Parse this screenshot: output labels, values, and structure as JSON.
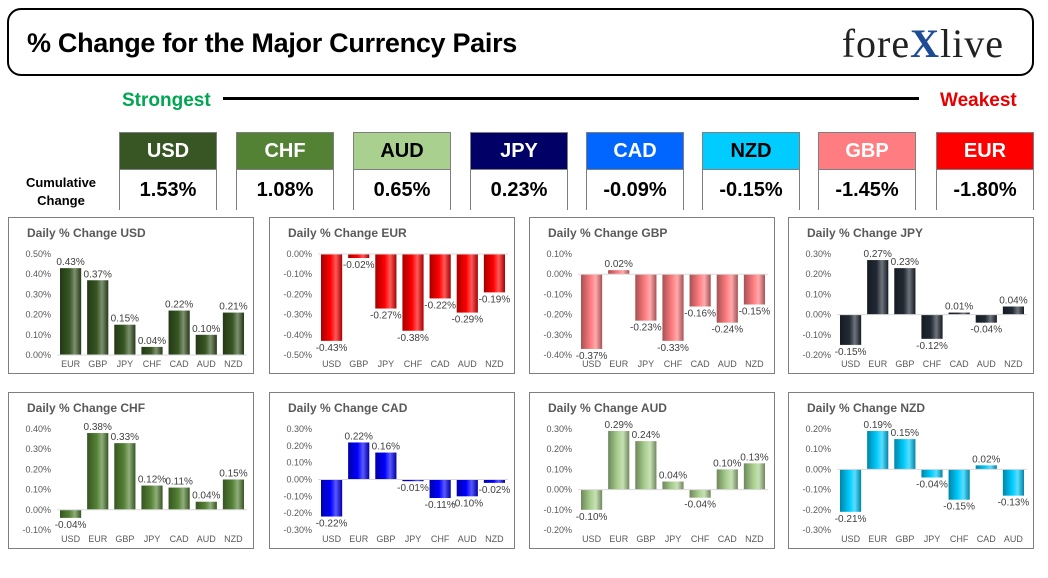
{
  "header": {
    "title": "% Change for the Major Currency Pairs",
    "logo_left": "fore",
    "logo_x": "X",
    "logo_right": "live"
  },
  "scale": {
    "strongest": "Strongest",
    "weakest": "Weakest"
  },
  "cumulative_label_1": "Cumulative",
  "cumulative_label_2": "Change",
  "currencies": [
    {
      "code": "USD",
      "value": "1.53%",
      "color": "#375623",
      "text": "#ffffff"
    },
    {
      "code": "CHF",
      "value": "1.08%",
      "color": "#548235",
      "text": "#ffffff"
    },
    {
      "code": "AUD",
      "value": "0.65%",
      "color": "#a9d08e",
      "text": "#000000"
    },
    {
      "code": "JPY",
      "value": "0.23%",
      "color": "#000066",
      "text": "#ffffff"
    },
    {
      "code": "CAD",
      "value": "-0.09%",
      "color": "#0066ff",
      "text": "#ffffff"
    },
    {
      "code": "NZD",
      "value": "-0.15%",
      "color": "#00ccff",
      "text": "#000000"
    },
    {
      "code": "GBP",
      "value": "-1.45%",
      "color": "#ff7c80",
      "text": "#ffffff"
    },
    {
      "code": "EUR",
      "value": "-1.80%",
      "color": "#ff0000",
      "text": "#ffffff"
    }
  ],
  "chart_data": [
    {
      "type": "bar",
      "title": "Daily % Change USD",
      "categories": [
        "EUR",
        "GBP",
        "JPY",
        "CHF",
        "CAD",
        "AUD",
        "NZD"
      ],
      "values": [
        0.43,
        0.37,
        0.15,
        0.04,
        0.22,
        0.1,
        0.21
      ],
      "labels": [
        "0.43%",
        "0.37%",
        "0.15%",
        "0.04%",
        "0.22%",
        "0.10%",
        "0.21%"
      ],
      "ylim": [
        0,
        0.5
      ],
      "ticks": [
        0,
        0.1,
        0.2,
        0.3,
        0.4,
        0.5
      ],
      "tick_labels": [
        "0.00%",
        "0.10%",
        "0.20%",
        "0.30%",
        "0.40%",
        "0.50%"
      ],
      "color": "#375623",
      "grid": false
    },
    {
      "type": "bar",
      "title": "Daily % Change EUR",
      "categories": [
        "USD",
        "GBP",
        "JPY",
        "CHF",
        "CAD",
        "AUD",
        "NZD"
      ],
      "values": [
        -0.43,
        -0.02,
        -0.27,
        -0.38,
        -0.22,
        -0.29,
        -0.19
      ],
      "labels": [
        "-0.43%",
        "-0.02%",
        "-0.27%",
        "-0.38%",
        "-0.22%",
        "-0.29%",
        "-0.19%"
      ],
      "ylim": [
        -0.5,
        0
      ],
      "ticks": [
        0,
        -0.1,
        -0.2,
        -0.3,
        -0.4,
        -0.5
      ],
      "tick_labels": [
        "0.00%",
        "-0.10%",
        "-0.20%",
        "-0.30%",
        "-0.40%",
        "-0.50%"
      ],
      "color": "#ff0000",
      "grid": false
    },
    {
      "type": "bar",
      "title": "Daily % Change GBP",
      "categories": [
        "USD",
        "EUR",
        "JPY",
        "CHF",
        "CAD",
        "AUD",
        "NZD"
      ],
      "values": [
        -0.37,
        0.02,
        -0.23,
        -0.33,
        -0.16,
        -0.24,
        -0.15
      ],
      "labels": [
        "-0.37%",
        "0.02%",
        "-0.23%",
        "-0.33%",
        "-0.16%",
        "-0.24%",
        "-0.15%"
      ],
      "ylim": [
        -0.4,
        0.1
      ],
      "ticks": [
        0.1,
        0,
        -0.1,
        -0.2,
        -0.3,
        -0.4
      ],
      "tick_labels": [
        "0.10%",
        "0.00%",
        "-0.10%",
        "-0.20%",
        "-0.30%",
        "-0.40%"
      ],
      "color": "#ff7c80",
      "grid": false
    },
    {
      "type": "bar",
      "title": "Daily % Change JPY",
      "categories": [
        "USD",
        "EUR",
        "GBP",
        "CHF",
        "CAD",
        "AUD",
        "NZD"
      ],
      "values": [
        -0.15,
        0.27,
        0.23,
        -0.12,
        0.01,
        -0.04,
        0.04
      ],
      "labels": [
        "-0.15%",
        "0.27%",
        "0.23%",
        "-0.12%",
        "0.01%",
        "-0.04%",
        "0.04%"
      ],
      "ylim": [
        -0.2,
        0.3
      ],
      "ticks": [
        0.3,
        0.2,
        0.1,
        0,
        -0.1,
        -0.2
      ],
      "tick_labels": [
        "0.30%",
        "0.20%",
        "0.10%",
        "0.00%",
        "-0.10%",
        "-0.20%"
      ],
      "color": "#222a35",
      "grid": false
    },
    {
      "type": "bar",
      "title": "Daily % Change CHF",
      "categories": [
        "USD",
        "EUR",
        "GBP",
        "JPY",
        "CAD",
        "AUD",
        "NZD"
      ],
      "values": [
        -0.04,
        0.38,
        0.33,
        0.12,
        0.11,
        0.04,
        0.15
      ],
      "labels": [
        "-0.04%",
        "0.38%",
        "0.33%",
        "0.12%",
        "0.11%",
        "0.04%",
        "0.15%"
      ],
      "ylim": [
        -0.1,
        0.4
      ],
      "ticks": [
        0.4,
        0.3,
        0.2,
        0.1,
        0,
        -0.1
      ],
      "tick_labels": [
        "0.40%",
        "0.30%",
        "0.20%",
        "0.10%",
        "0.00%",
        "-0.10%"
      ],
      "color": "#548235",
      "grid": false
    },
    {
      "type": "bar",
      "title": "Daily % Change CAD",
      "categories": [
        "USD",
        "EUR",
        "GBP",
        "JPY",
        "CHF",
        "AUD",
        "NZD"
      ],
      "values": [
        -0.22,
        0.22,
        0.16,
        -0.01,
        -0.11,
        -0.1,
        -0.02
      ],
      "labels": [
        "-0.22%",
        "0.22%",
        "0.16%",
        "-0.01%",
        "-0.11%",
        "-0.10%",
        "-0.02%"
      ],
      "ylim": [
        -0.3,
        0.3
      ],
      "ticks": [
        0.3,
        0.2,
        0.1,
        0,
        -0.1,
        -0.2,
        -0.3
      ],
      "tick_labels": [
        "0.30%",
        "0.20%",
        "0.10%",
        "0.00%",
        "-0.10%",
        "-0.20%",
        "-0.30%"
      ],
      "color": "#0000ff",
      "grid": false
    },
    {
      "type": "bar",
      "title": "Daily % Change AUD",
      "categories": [
        "USD",
        "EUR",
        "GBP",
        "JPY",
        "CHF",
        "CAD",
        "NZD"
      ],
      "values": [
        -0.1,
        0.29,
        0.24,
        0.04,
        -0.04,
        0.1,
        0.13
      ],
      "labels": [
        "-0.10%",
        "0.29%",
        "0.24%",
        "0.04%",
        "-0.04%",
        "0.10%",
        "0.13%"
      ],
      "ylim": [
        -0.2,
        0.3
      ],
      "ticks": [
        0.3,
        0.2,
        0.1,
        0,
        -0.1,
        -0.2
      ],
      "tick_labels": [
        "0.30%",
        "0.20%",
        "0.10%",
        "0.00%",
        "-0.10%",
        "-0.20%"
      ],
      "color": "#a9d08e",
      "grid": false
    },
    {
      "type": "bar",
      "title": "Daily % Change NZD",
      "categories": [
        "USD",
        "EUR",
        "GBP",
        "JPY",
        "CHF",
        "CAD",
        "AUD"
      ],
      "values": [
        -0.21,
        0.19,
        0.15,
        -0.04,
        -0.15,
        0.02,
        -0.13
      ],
      "labels": [
        "-0.21%",
        "0.19%",
        "0.15%",
        "-0.04%",
        "-0.15%",
        "0.02%",
        "-0.13%"
      ],
      "ylim": [
        -0.3,
        0.2
      ],
      "ticks": [
        0.2,
        0.1,
        0,
        -0.1,
        -0.2,
        -0.3
      ],
      "tick_labels": [
        "0.20%",
        "0.10%",
        "0.00%",
        "-0.10%",
        "-0.20%",
        "-0.30%"
      ],
      "color": "#00ccff",
      "grid": false
    }
  ]
}
